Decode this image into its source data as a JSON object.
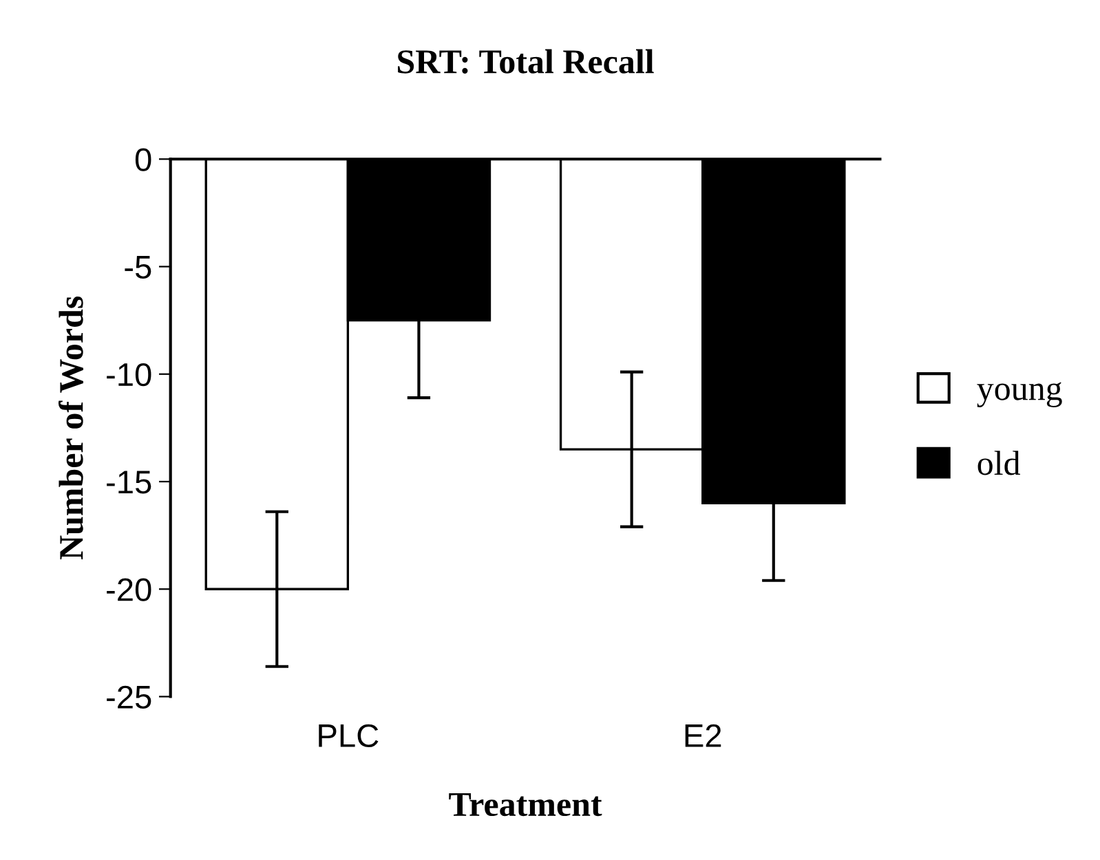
{
  "chart_data": {
    "type": "bar",
    "title": "SRT: Total Recall",
    "xlabel": "Treatment",
    "ylabel": "Number of Words",
    "categories": [
      "PLC",
      "E2"
    ],
    "series": [
      {
        "name": "young",
        "color": "#ffffff",
        "values": [
          -20,
          -13.5
        ],
        "errors": [
          3.6,
          3.6
        ]
      },
      {
        "name": "old",
        "color": "#000000",
        "values": [
          -7.5,
          -16
        ],
        "errors": [
          3.6,
          3.6
        ]
      }
    ],
    "ylim": [
      -25,
      0
    ],
    "yticks": [
      -25,
      -20,
      -15,
      -10,
      -5,
      0
    ],
    "grid": false,
    "legend": "right"
  }
}
